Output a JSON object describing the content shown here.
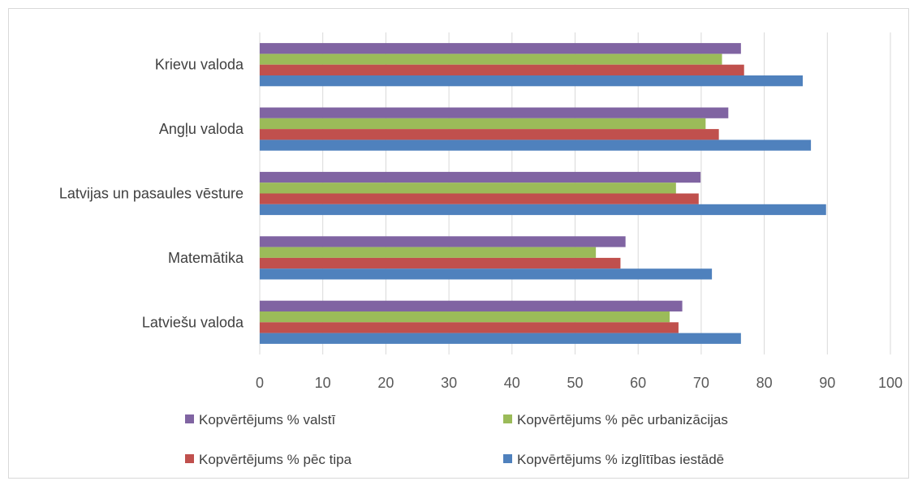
{
  "chart_data": {
    "type": "bar",
    "orientation": "horizontal",
    "categories": [
      "Latviešu valoda",
      "Matemātika",
      "Latvijas un pasaules vēsture",
      "Angļu valoda",
      "Krievu valoda"
    ],
    "series": [
      {
        "name": "Kopvērtējums % izglītības iestādē",
        "color": "#4F81BD",
        "values": [
          76.3,
          71.7,
          89.8,
          87.4,
          86.1
        ]
      },
      {
        "name": "Kopvērtējums % pēc tipa",
        "color": "#C0504D",
        "values": [
          66.4,
          57.2,
          69.6,
          72.8,
          76.8
        ]
      },
      {
        "name": "Kopvērtējums % pēc urbanizācijas",
        "color": "#9BBB59",
        "values": [
          65.0,
          53.3,
          66.0,
          70.7,
          73.3
        ]
      },
      {
        "name": "Kopvērtējums % valstī",
        "color": "#8064A2",
        "values": [
          67.0,
          58.0,
          69.9,
          74.3,
          76.3
        ]
      }
    ],
    "xlim": [
      0,
      100
    ],
    "xticks": [
      "0",
      "10",
      "20",
      "30",
      "40",
      "50",
      "60",
      "70",
      "80",
      "90",
      "100"
    ],
    "grid": true,
    "legend_position": "bottom",
    "legend_order": [
      3,
      2,
      1,
      0
    ]
  }
}
